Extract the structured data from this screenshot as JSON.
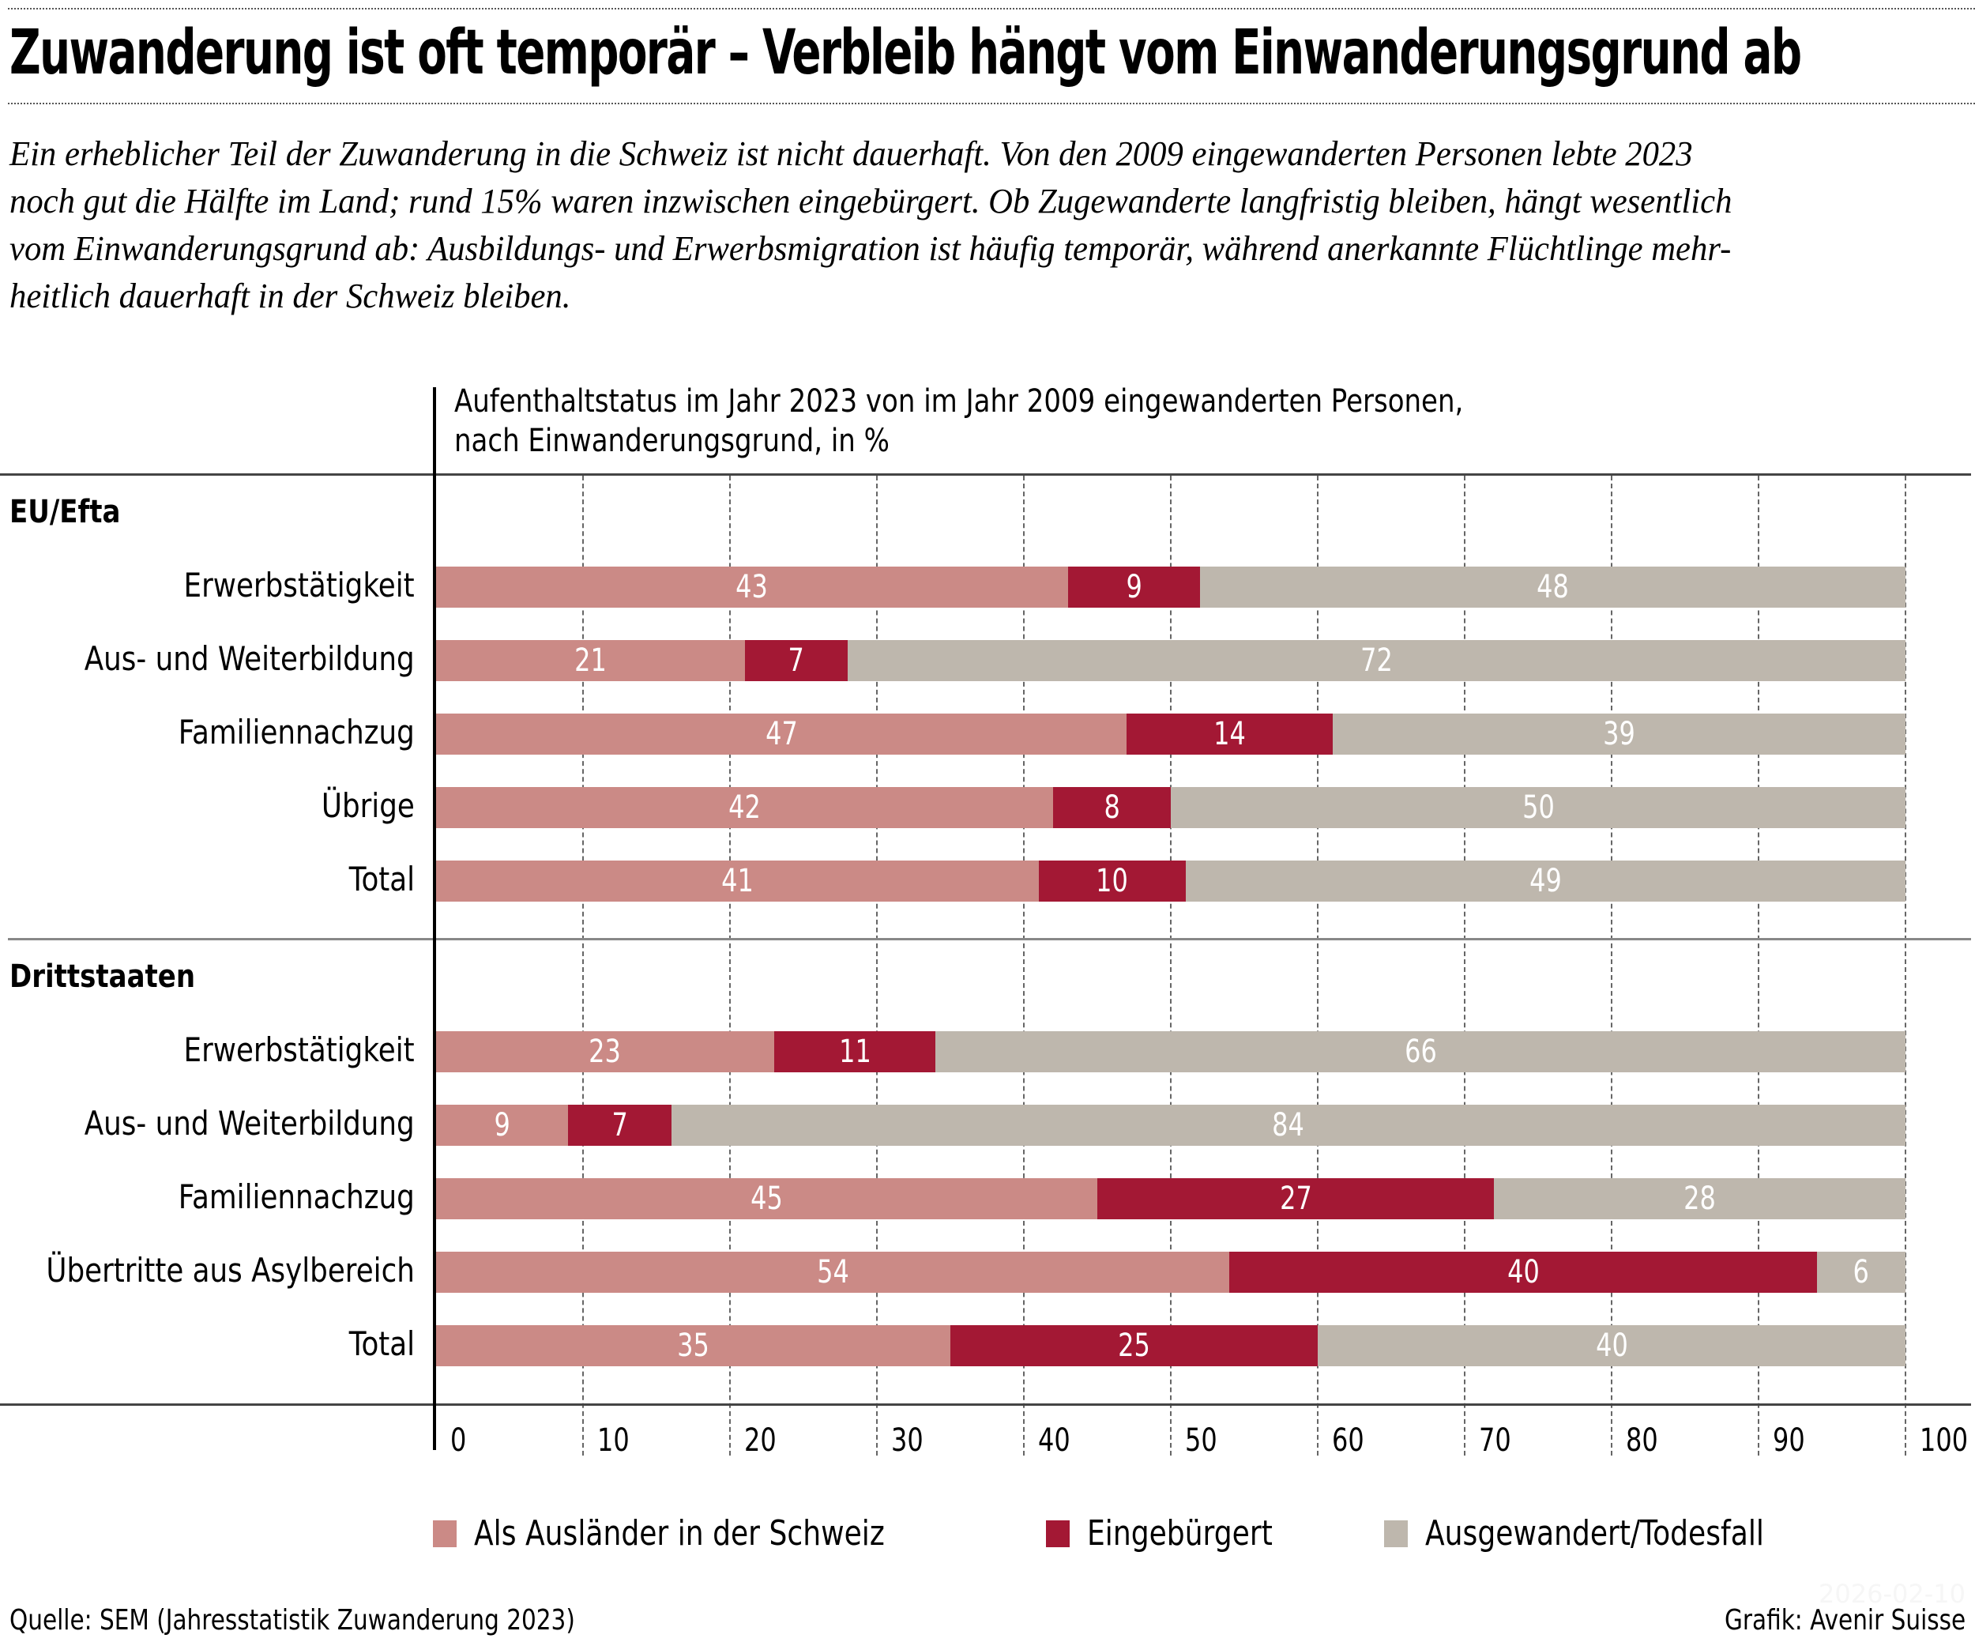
{
  "header": {
    "title": "Zuwanderung ist oft temporär – Verbleib hängt vom Einwanderungsgrund ab",
    "subtitle_lines": [
      "Ein erheblicher Teil der Zuwanderung in die Schweiz ist nicht dauerhaft. Von den 2009 eingewanderten Personen lebte 2023",
      "noch gut die Hälfte im Land; rund 15% waren inzwischen eingebürgert. Ob Zugewanderte langfristig bleiben, hängt wesentlich",
      "vom Einwanderungsgrund ab: Ausbildungs- und Erwerbsmigration ist häufig temporär, während anerkannte Flüchtlinge mehr-",
      "heitlich dauerhaft in der Schweiz bleiben."
    ]
  },
  "chart_data": {
    "type": "bar",
    "orientation": "horizontal",
    "stacked": true,
    "title": "Aufenthaltstatus im Jahr 2023 von im Jahr 2009 eingewanderten Personen,",
    "title_line2": "nach Einwanderungsgrund, in %",
    "xlabel": "",
    "ylabel": "",
    "xlim": [
      0,
      100
    ],
    "xticks": [
      "0",
      "10",
      "20",
      "30",
      "40",
      "50",
      "60",
      "70",
      "80",
      "90",
      "100"
    ],
    "grid": true,
    "legend_position": "bottom",
    "series": [
      {
        "name": "Als Ausländer in der Schweiz",
        "color": "#CB8A86"
      },
      {
        "name": "Eingebürgert",
        "color": "#A31834"
      },
      {
        "name": "Ausgewandert/Todesfall",
        "color": "#BEB7AD"
      }
    ],
    "groups": [
      {
        "name": "EU/Efta",
        "rows": [
          {
            "label": "Erwerbstätigkeit",
            "values": [
              43,
              9,
              48
            ]
          },
          {
            "label": "Aus- und Weiterbildung",
            "values": [
              21,
              7,
              72
            ]
          },
          {
            "label": "Familiennachzug",
            "values": [
              47,
              14,
              39
            ]
          },
          {
            "label": "Übrige",
            "values": [
              42,
              8,
              50
            ]
          },
          {
            "label": "Total",
            "values": [
              41,
              10,
              49
            ]
          }
        ]
      },
      {
        "name": "Drittstaaten",
        "rows": [
          {
            "label": "Erwerbstätigkeit",
            "values": [
              23,
              11,
              66
            ]
          },
          {
            "label": "Aus- und Weiterbildung",
            "values": [
              9,
              7,
              84
            ]
          },
          {
            "label": "Familiennachzug",
            "values": [
              45,
              27,
              28
            ]
          },
          {
            "label": "Übertritte aus Asylbereich",
            "values": [
              54,
              40,
              6
            ]
          },
          {
            "label": "Total",
            "values": [
              35,
              25,
              40
            ]
          }
        ]
      }
    ]
  },
  "footer": {
    "source": "Quelle: SEM (Jahresstatistik Zuwanderung 2023)",
    "credit": "Grafik: Avenir Suisse",
    "date": "2026-02-10"
  }
}
